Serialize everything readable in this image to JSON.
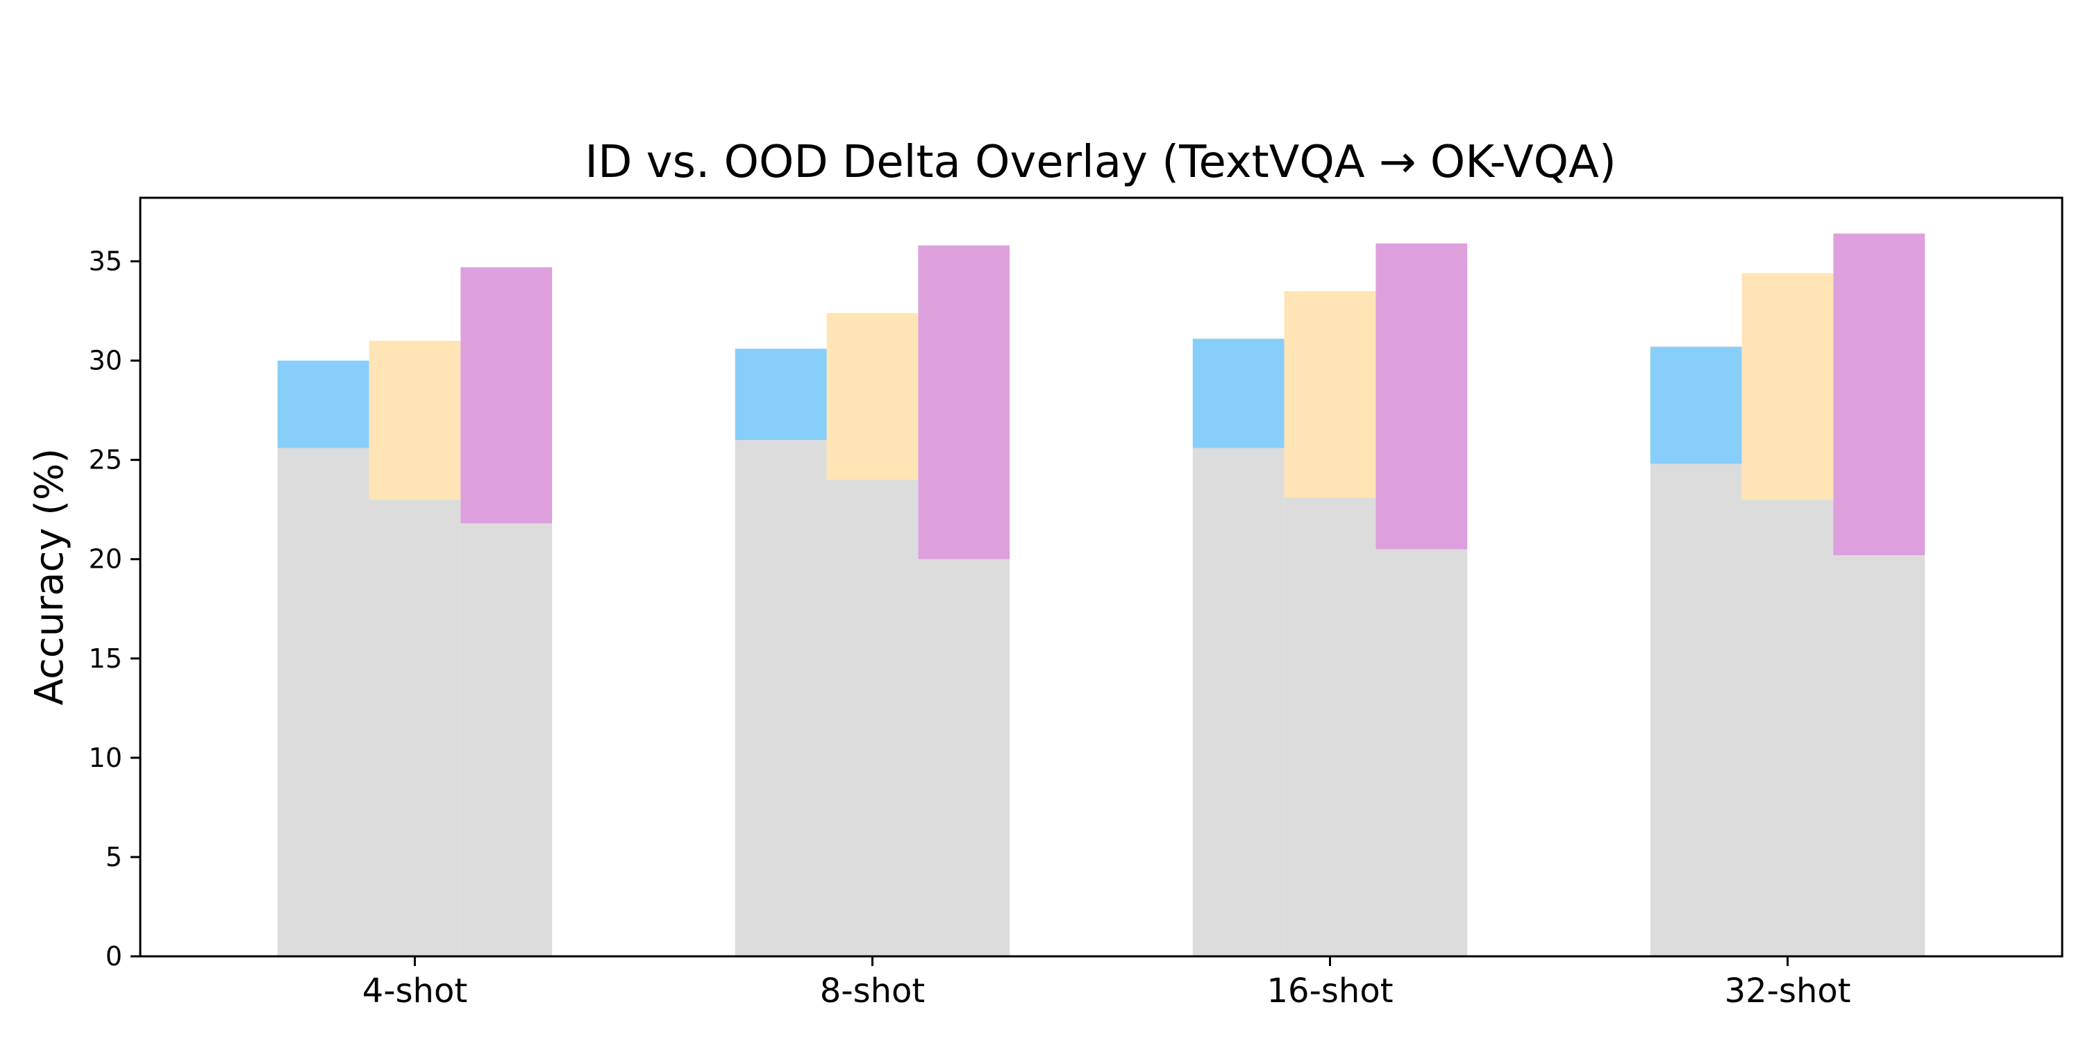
{
  "chart_data": {
    "type": "bar",
    "title": "ID vs. OOD Delta Overlay (TextVQA → OK-VQA)",
    "ylabel": "Accuracy (%)",
    "xlabel": "",
    "ylim": [
      0,
      38.2
    ],
    "yticks": [
      0,
      5,
      10,
      15,
      20,
      25,
      30,
      35
    ],
    "categories": [
      "4-shot",
      "8-shot",
      "16-shot",
      "32-shot"
    ],
    "grid": false,
    "legend": "none",
    "series": [
      {
        "color": "#87CEFA",
        "base_color": "#DCDCDC",
        "ood": [
          25.6,
          26.0,
          25.6,
          24.8
        ],
        "id": [
          30.0,
          30.6,
          31.1,
          30.7
        ]
      },
      {
        "color": "#FFE4B5",
        "base_color": "#DCDCDC",
        "ood": [
          23.0,
          24.0,
          23.1,
          23.0
        ],
        "id": [
          31.0,
          32.4,
          33.5,
          34.4
        ]
      },
      {
        "color": "#DDA0DD",
        "base_color": "#DCDCDC",
        "ood": [
          21.8,
          20.0,
          20.5,
          20.2
        ],
        "id": [
          34.7,
          35.8,
          35.9,
          36.4
        ]
      }
    ]
  }
}
